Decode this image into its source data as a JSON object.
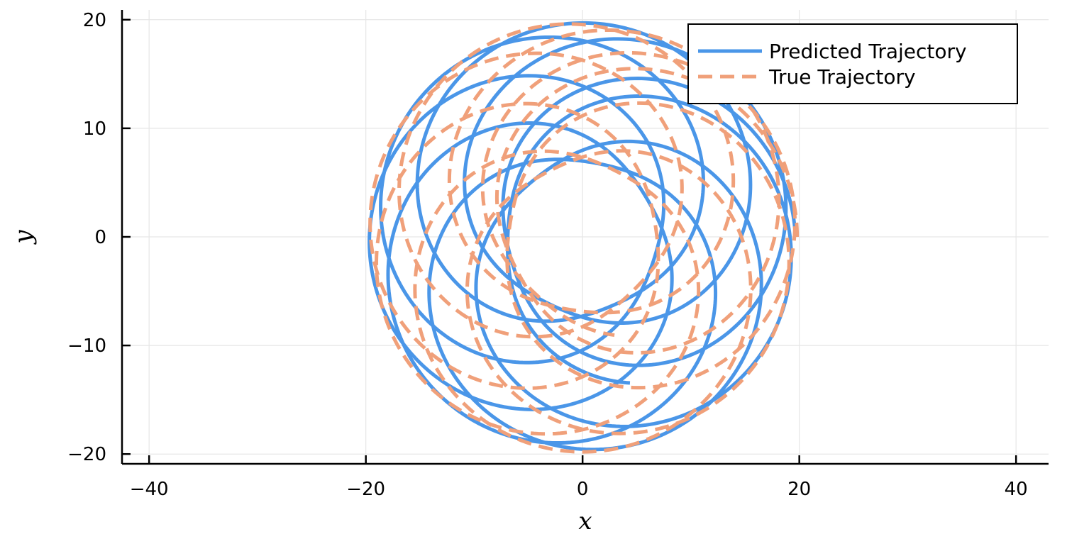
{
  "chart_data": {
    "type": "line",
    "xlabel": "x",
    "ylabel": "y",
    "xlim": [
      -42.5,
      43
    ],
    "ylim": [
      -20.9,
      20.9
    ],
    "xticks": [
      -40,
      -20,
      0,
      20,
      40
    ],
    "xtick_labels": [
      "−40",
      "−20",
      "0",
      "20",
      "40"
    ],
    "yticks": [
      -20,
      -10,
      0,
      10,
      20
    ],
    "ytick_labels": [
      "−20",
      "−10",
      "0",
      "10",
      "20"
    ],
    "grid": true,
    "legend_position": "top-right",
    "series": [
      {
        "name": "Predicted Trajectory",
        "color": "#4a96e8",
        "dash": "solid",
        "rosette": {
          "r_min": 6.9,
          "r_max": 19.7,
          "turns": 8.8,
          "apsidal_advance_deg": 43,
          "start_angle_deg": 0,
          "angle_offset_deg": 8
        }
      },
      {
        "name": "True Trajectory",
        "color": "#f0a07a",
        "dash": "dashed",
        "rosette": {
          "r_min": 6.8,
          "r_max": 19.8,
          "turns": 8.8,
          "apsidal_advance_deg": 47,
          "start_angle_deg": 0,
          "angle_offset_deg": 0
        }
      }
    ]
  }
}
